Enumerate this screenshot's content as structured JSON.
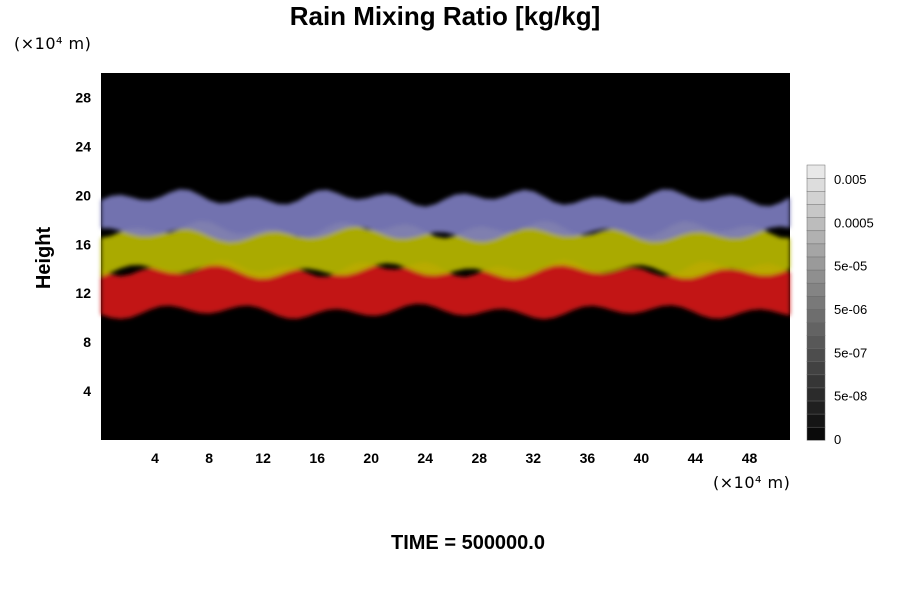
{
  "chart_data": {
    "type": "heatmap",
    "title": "Rain Mixing Ratio [kg/kg]",
    "ylabel": "Height",
    "xlabel": "",
    "x_unit": "(×10⁴ m)",
    "y_unit": "(×10⁴ m)",
    "x_ticks": [
      4,
      8,
      12,
      16,
      20,
      24,
      28,
      32,
      36,
      40,
      44,
      48
    ],
    "y_ticks": [
      4,
      8,
      12,
      16,
      20,
      24,
      28
    ],
    "xlim": [
      0,
      51
    ],
    "ylim": [
      0,
      30
    ],
    "colorbar": {
      "labels": [
        "0.005",
        "0.0005",
        "5e-05",
        "5e-06",
        "5e-07",
        "5e-08",
        "0"
      ],
      "scale": "log"
    },
    "bands": [
      {
        "name": "red",
        "color": "#d21414",
        "y_min": 10.5,
        "y_max": 14.0
      },
      {
        "name": "yellow",
        "color": "#b8b800",
        "y_min": 13.8,
        "y_max": 17.2
      },
      {
        "name": "blue",
        "color": "#7c7cbe",
        "y_min": 16.8,
        "y_max": 19.8
      }
    ],
    "background_color": "#000000",
    "annotation": "TIME = 500000.0"
  }
}
